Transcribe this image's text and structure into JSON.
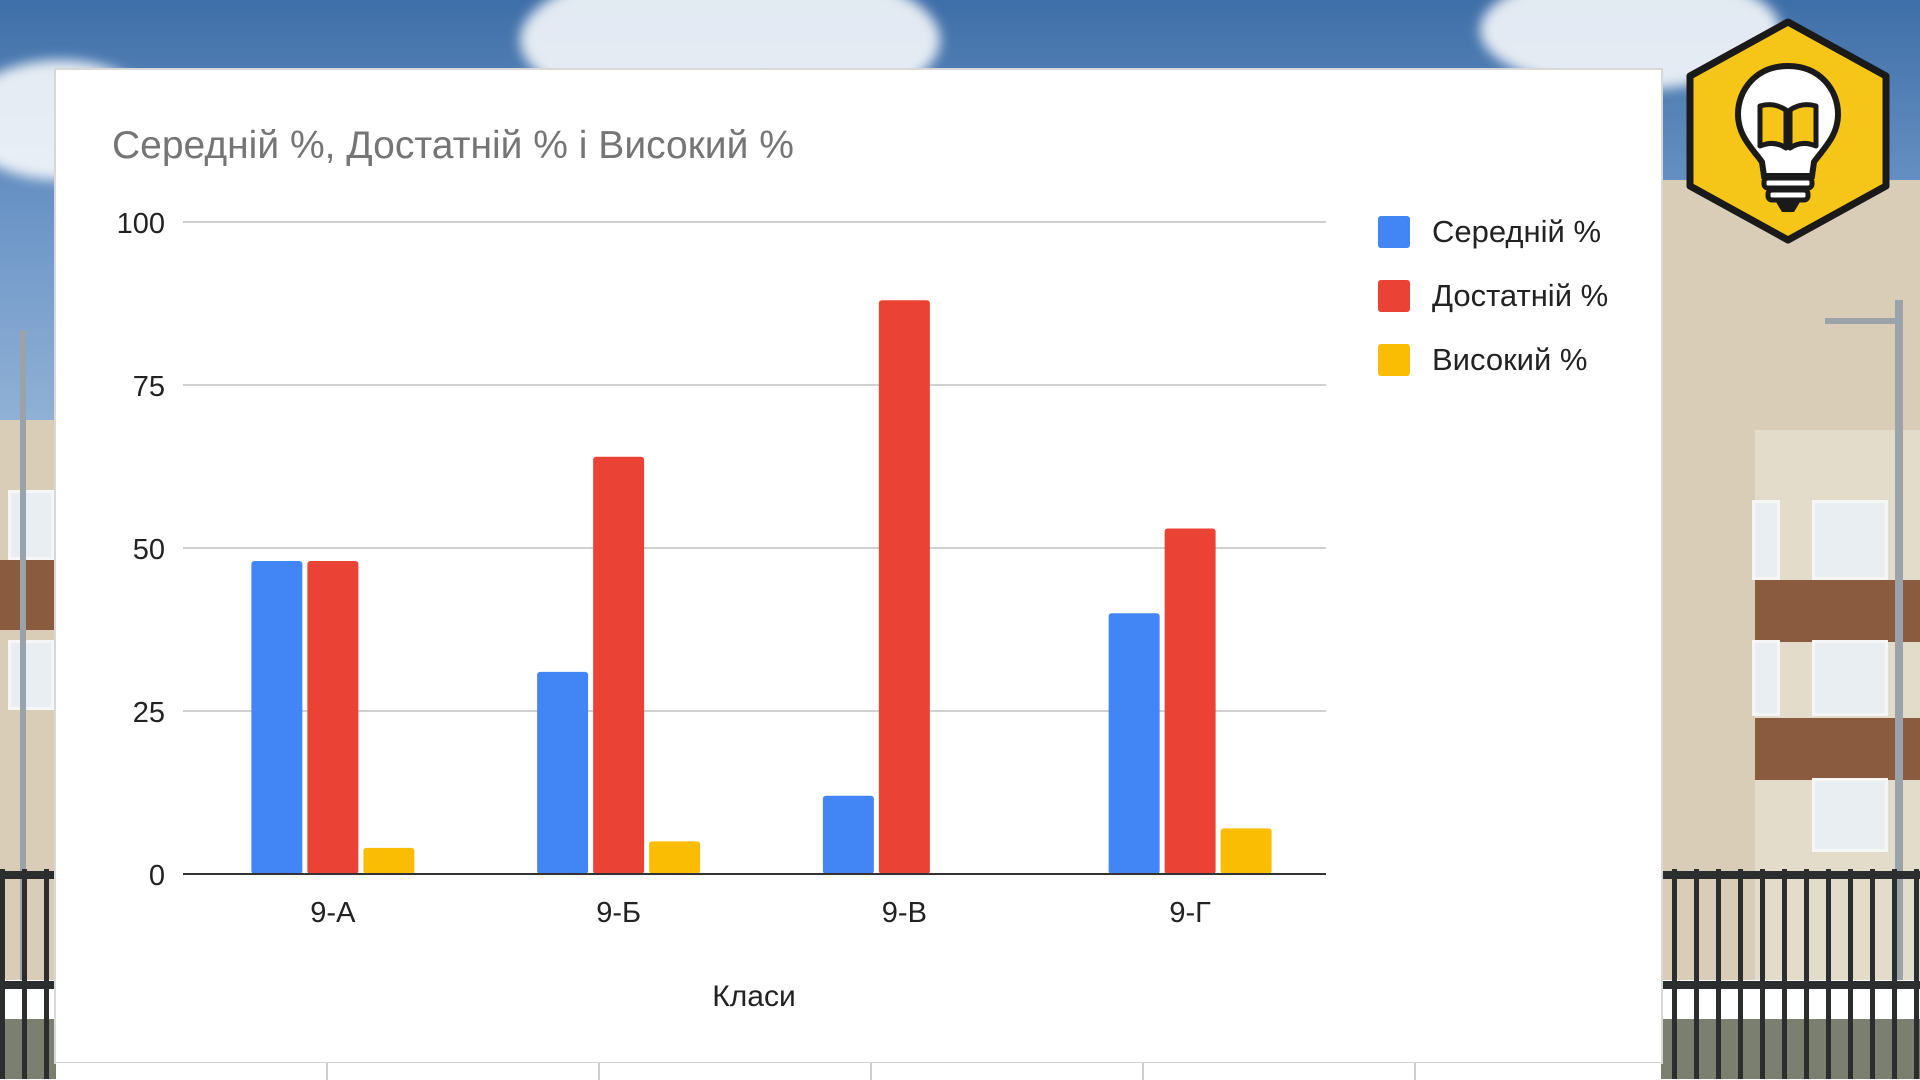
{
  "chart_data": {
    "type": "bar",
    "title": "Середній %, Достатній % і Високий %",
    "xlabel": "Класи",
    "ylabel": "",
    "ylim": [
      0,
      100
    ],
    "yticks": [
      0,
      25,
      50,
      75,
      100
    ],
    "categories": [
      "9-А",
      "9-Б",
      "9-В",
      "9-Г"
    ],
    "series": [
      {
        "name": "Середній %",
        "color": "#4285f4",
        "values": [
          48,
          31,
          12,
          40
        ]
      },
      {
        "name": "Достатній %",
        "color": "#ea4335",
        "values": [
          48,
          64,
          88,
          53
        ]
      },
      {
        "name": "Високий %",
        "color": "#fbbc04",
        "values": [
          4,
          5,
          0,
          7
        ]
      }
    ],
    "grid": true,
    "legend": "right"
  },
  "logo": {
    "icon": "lightbulb-book-icon",
    "color": "#f5c518"
  }
}
